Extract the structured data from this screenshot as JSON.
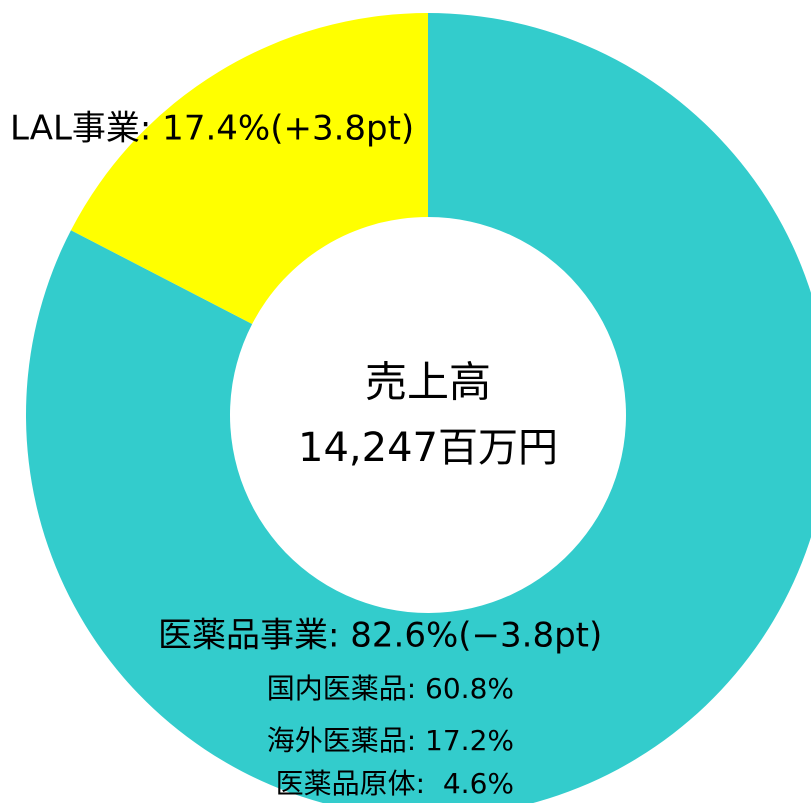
{
  "chart_data": {
    "type": "pie",
    "labels": [
      "医薬品事業: 82.6%(−3.8pt)",
      "LAL事業: 17.4%(+3.8pt)"
    ],
    "values": [
      82.6,
      17.4
    ],
    "colors": [
      "#33cccc",
      "#ffff00"
    ],
    "donut": true,
    "center_title": "売上高",
    "center_value": "14,247百万円",
    "annotations": [
      "国内医薬品: 60.8%",
      "海外医薬品: 17.2%",
      "医薬品原体:  4.6%"
    ]
  }
}
